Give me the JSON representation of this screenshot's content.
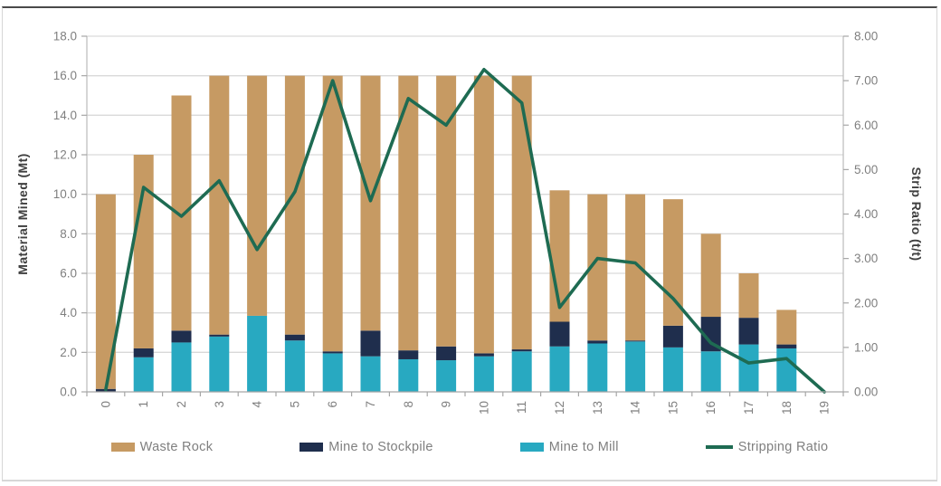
{
  "chart_data": {
    "type": "bar",
    "subtype": "stacked-bar-with-line-combo",
    "categories": [
      "0",
      "1",
      "2",
      "3",
      "4",
      "5",
      "6",
      "7",
      "8",
      "9",
      "10",
      "11",
      "12",
      "13",
      "14",
      "15",
      "16",
      "17",
      "18",
      "19"
    ],
    "series": [
      {
        "name": "Waste Rock",
        "type": "bar",
        "axis": "left",
        "color": "#C69A63",
        "values": [
          9.85,
          9.8,
          11.9,
          13.1,
          12.15,
          13.1,
          13.95,
          12.9,
          13.9,
          13.7,
          14.05,
          13.85,
          6.65,
          7.4,
          7.4,
          6.4,
          4.2,
          2.25,
          1.75,
          0
        ]
      },
      {
        "name": "Mine to Stockpile",
        "type": "bar",
        "axis": "left",
        "color": "#1F2E4D",
        "values": [
          0.15,
          0.45,
          0.6,
          0.1,
          0,
          0.3,
          0.1,
          1.3,
          0.45,
          0.7,
          0.15,
          0.1,
          1.25,
          0.15,
          0.05,
          1.1,
          1.75,
          1.35,
          0.2,
          0
        ]
      },
      {
        "name": "Mine to Mill",
        "type": "bar",
        "axis": "left",
        "color": "#28A9C1",
        "values": [
          0,
          1.75,
          2.5,
          2.8,
          3.85,
          2.6,
          1.95,
          1.8,
          1.65,
          1.6,
          1.8,
          2.05,
          2.3,
          2.45,
          2.55,
          2.25,
          2.05,
          2.4,
          2.2,
          0
        ]
      },
      {
        "name": "Stripping Ratio",
        "type": "line",
        "axis": "right",
        "color": "#1E6B52",
        "values": [
          0.05,
          4.6,
          3.95,
          4.75,
          3.2,
          4.5,
          7.0,
          4.3,
          6.6,
          6.0,
          7.25,
          6.5,
          1.9,
          3.0,
          2.9,
          2.1,
          1.1,
          0.65,
          0.75,
          0
        ]
      }
    ],
    "stack_bottom_to_top": [
      "Mine to Mill",
      "Mine to Stockpile",
      "Waste Rock"
    ],
    "ylabel_left": "Material Mined (Mt)",
    "ylabel_right": "Strip Ratio (t/t)",
    "ylim_left": [
      0,
      18
    ],
    "ylim_right": [
      0,
      8
    ],
    "yticks_left": [
      "0.0",
      "2.0",
      "4.0",
      "6.0",
      "8.0",
      "10.0",
      "12.0",
      "14.0",
      "16.0",
      "18.0"
    ],
    "yticks_right": [
      "0.00",
      "1.00",
      "2.00",
      "3.00",
      "4.00",
      "5.00",
      "6.00",
      "7.00",
      "8.00"
    ],
    "xlabel": "",
    "grid": true,
    "legend_position": "bottom"
  },
  "legend": {
    "items": [
      {
        "label": "Waste Rock"
      },
      {
        "label": "Mine to Stockpile"
      },
      {
        "label": "Mine to Mill"
      },
      {
        "label": "Stripping Ratio"
      }
    ]
  },
  "colors": {
    "waste_rock": "#C69A63",
    "mine_to_stockpile": "#1F2E4D",
    "mine_to_mill": "#28A9C1",
    "stripping_ratio": "#1E6B52",
    "gridline": "#D9D9D9",
    "axis_line": "#A6A6A6",
    "plot_border": "#BFBFBF",
    "tick_text": "#7F7F7F",
    "axis_title_text": "#3F3F3F"
  }
}
